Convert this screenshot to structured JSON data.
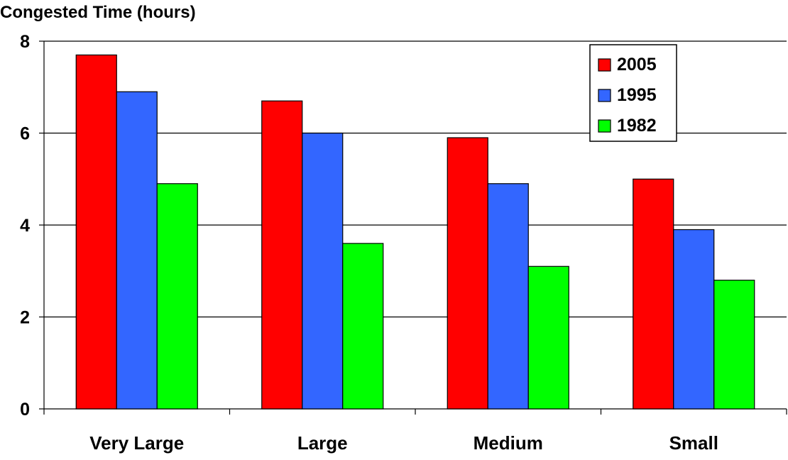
{
  "chart_data": {
    "type": "bar",
    "title": "",
    "xlabel": "",
    "ylabel": "Congested Time (hours)",
    "categories": [
      "Very Large",
      "Large",
      "Medium",
      "Small"
    ],
    "series": [
      {
        "name": "2005",
        "values": [
          7.7,
          6.7,
          5.9,
          5.0
        ],
        "color": "#ff0000"
      },
      {
        "name": "1995",
        "values": [
          6.9,
          6.0,
          4.9,
          3.9
        ],
        "color": "#3366ff"
      },
      {
        "name": "1982",
        "values": [
          4.9,
          3.6,
          3.1,
          2.8
        ],
        "color": "#00ff00"
      }
    ],
    "ylim": [
      0,
      8
    ],
    "yticks": [
      0,
      2,
      4,
      6,
      8
    ],
    "grid": true,
    "legend_position": "top-right"
  }
}
